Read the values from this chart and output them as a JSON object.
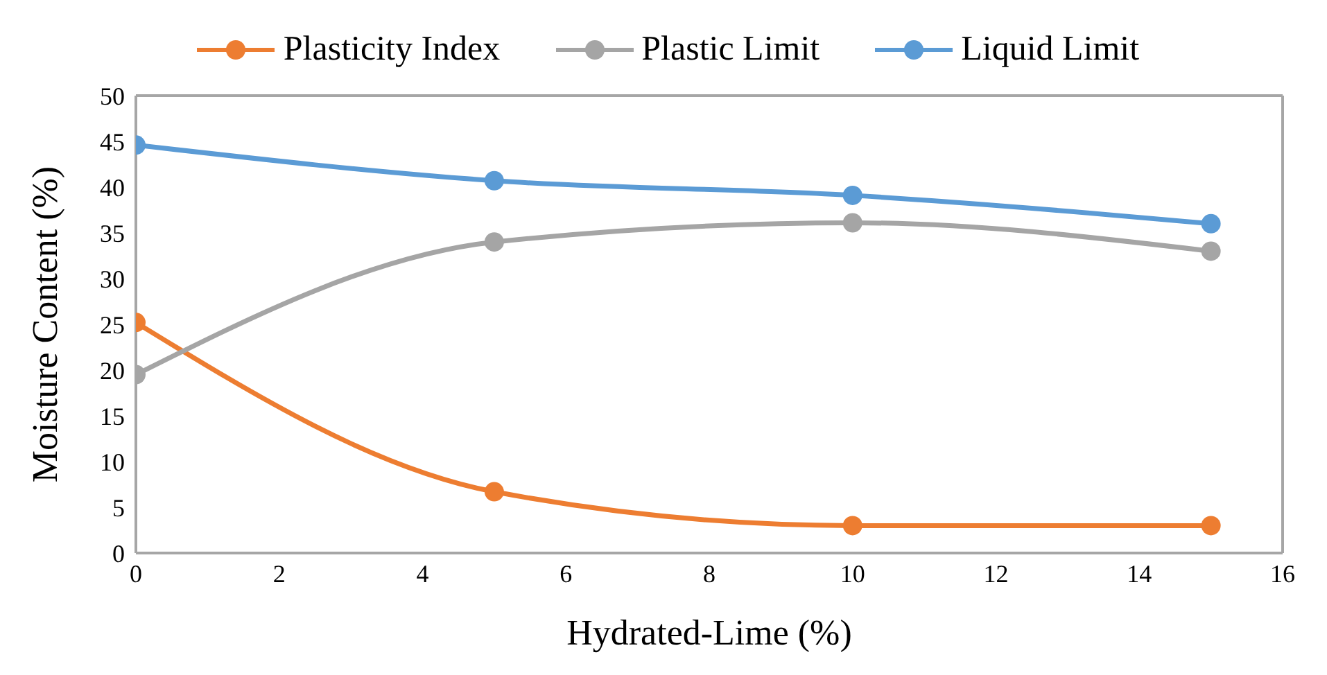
{
  "chart_data": {
    "type": "line",
    "xlabel": "Hydrated-Lime (%)",
    "ylabel": "Moisture Content (%)",
    "x": [
      0,
      5,
      10,
      15
    ],
    "series": [
      {
        "name": "Plasticity Index",
        "color": "#ed7d31",
        "values": [
          25.2,
          6.7,
          3.0,
          3.0
        ]
      },
      {
        "name": "Plastic Limit",
        "color": "#a5a5a5",
        "values": [
          19.5,
          34.0,
          36.1,
          33.0
        ]
      },
      {
        "name": "Liquid Limit",
        "color": "#5b9bd5",
        "values": [
          44.6,
          40.7,
          39.1,
          36.0
        ]
      }
    ],
    "xlim": [
      0,
      16
    ],
    "xticks": [
      0,
      2,
      4,
      6,
      8,
      10,
      12,
      14,
      16
    ],
    "ylim": [
      0,
      50
    ],
    "yticks": [
      0,
      5,
      10,
      15,
      20,
      25,
      30,
      35,
      40,
      45,
      50
    ],
    "legend": "top",
    "marker": "circle",
    "line_style": "solid"
  }
}
